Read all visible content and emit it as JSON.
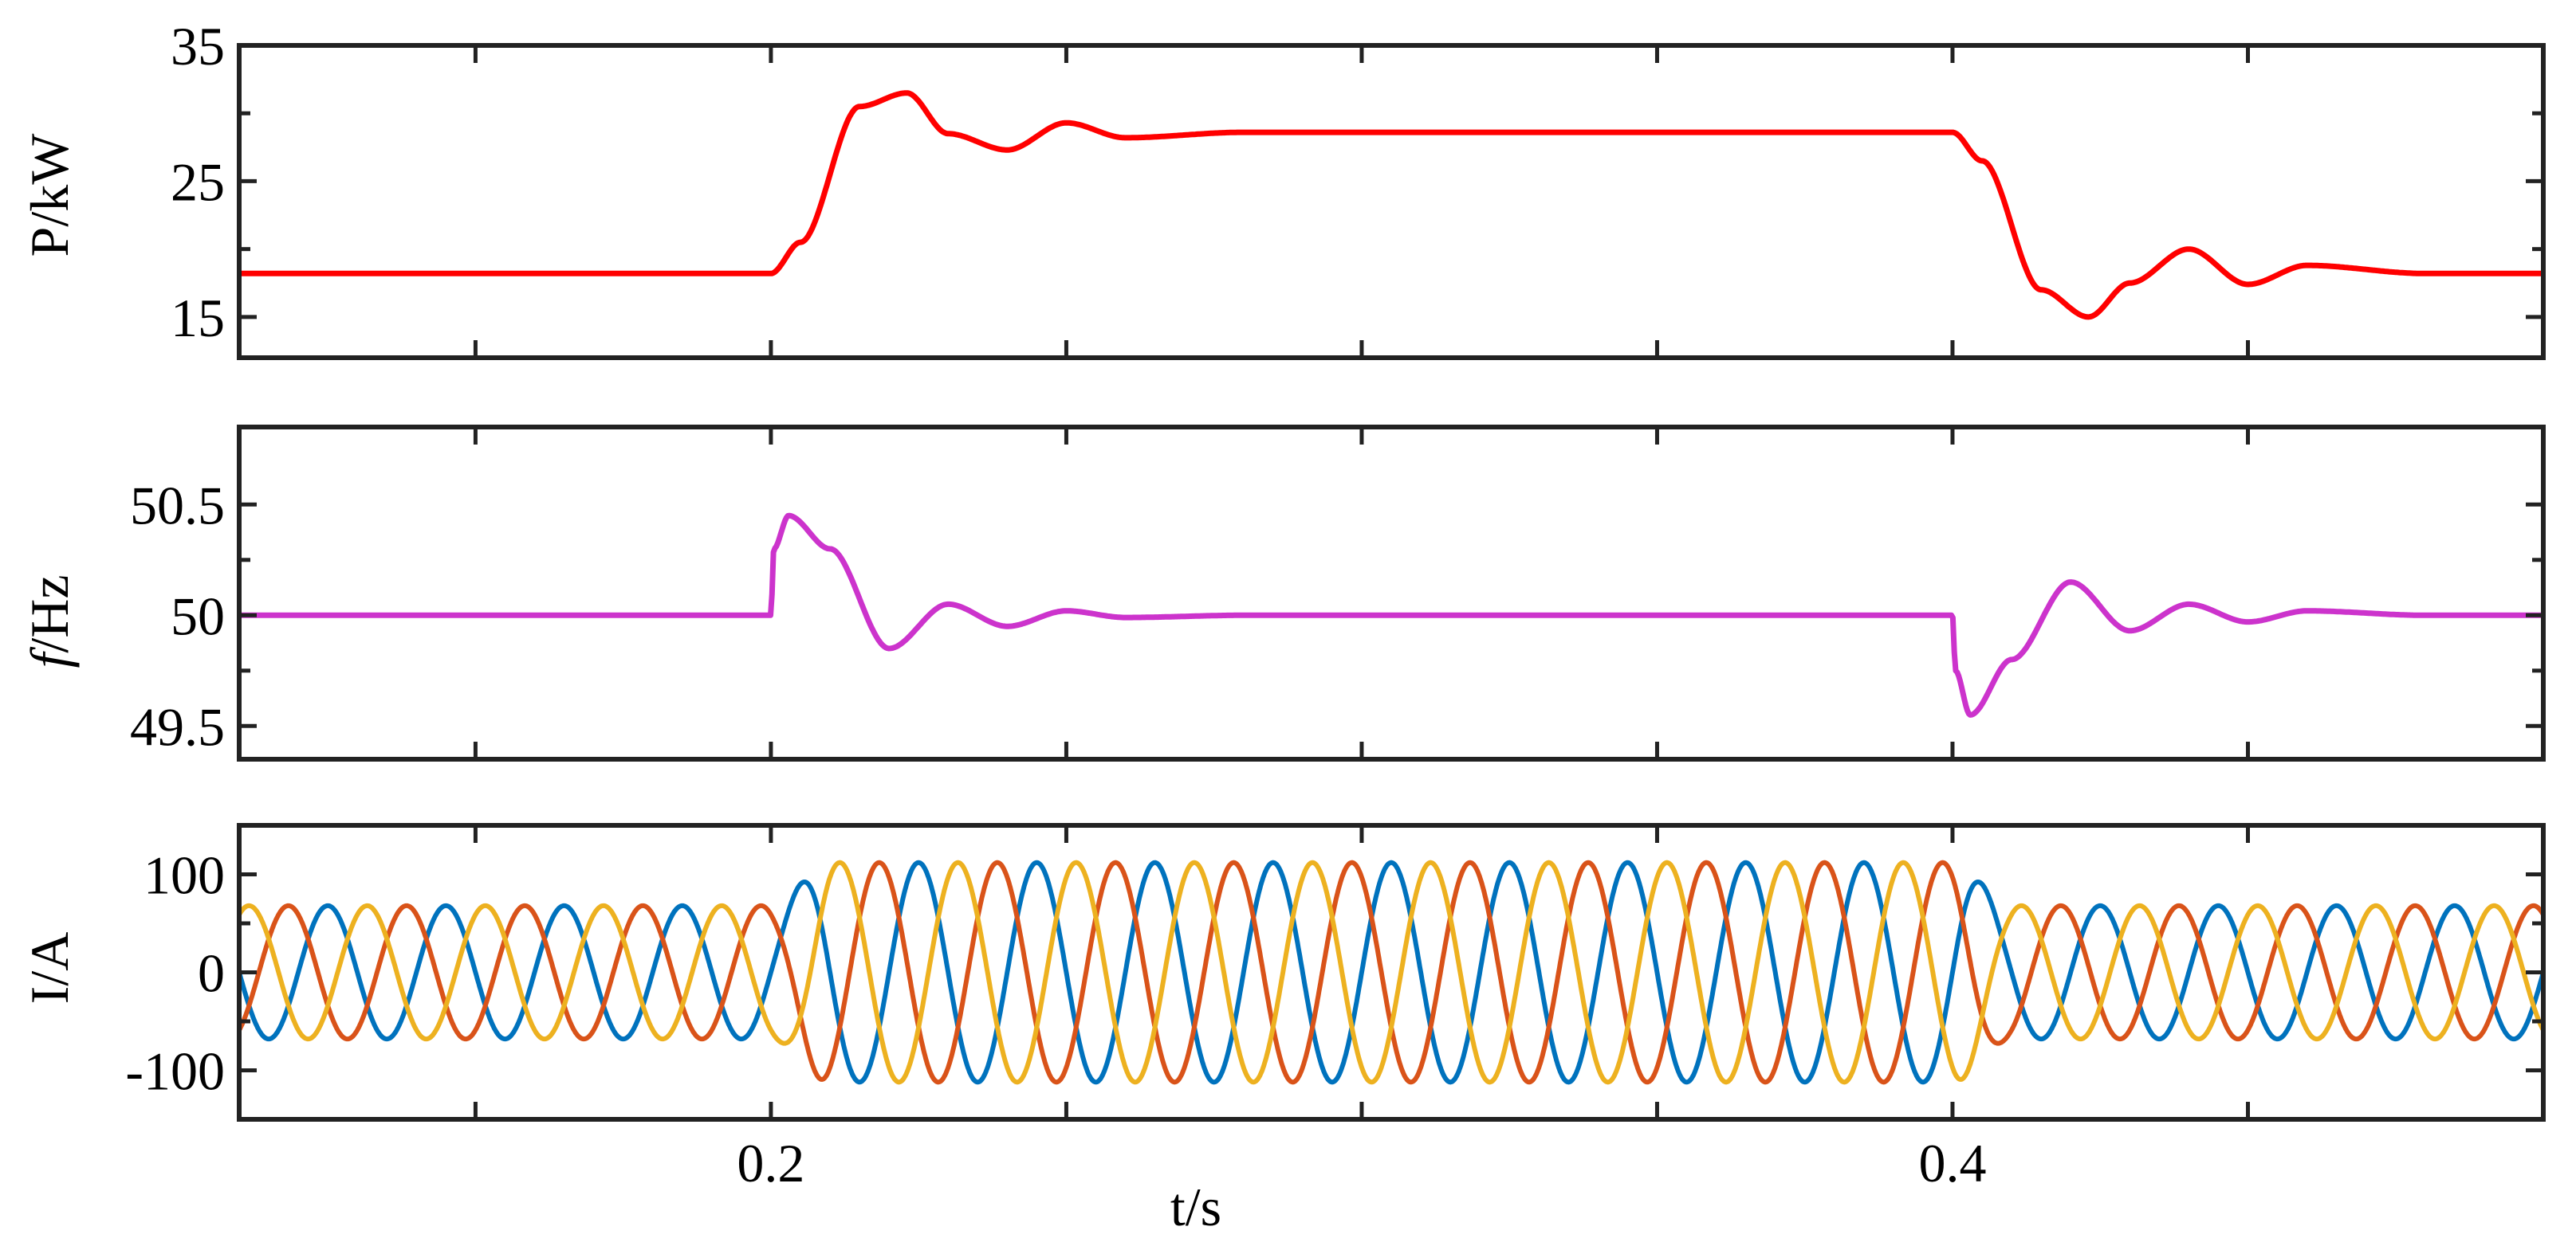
{
  "chart_data": [
    {
      "type": "line",
      "ylabel": "P/kW",
      "xlim": [
        0.11,
        0.5
      ],
      "ylim": [
        12,
        35
      ],
      "yticks": [
        15,
        25,
        35
      ],
      "ytick_labels": [
        "15",
        "25",
        "35"
      ],
      "xticks": [
        0.15,
        0.2,
        0.25,
        0.3,
        0.35,
        0.4,
        0.45
      ],
      "series": [
        {
          "color": "#ff0000",
          "x": [
            0.11,
            0.2,
            0.205,
            0.215,
            0.223,
            0.23,
            0.24,
            0.25,
            0.26,
            0.28,
            0.4,
            0.405,
            0.415,
            0.423,
            0.43,
            0.44,
            0.45,
            0.46,
            0.48,
            0.5
          ],
          "y": [
            18.2,
            18.2,
            20.5,
            30.5,
            31.5,
            28.5,
            27.3,
            29.3,
            28.2,
            28.6,
            28.6,
            26.5,
            17.0,
            15.0,
            17.5,
            20.0,
            17.4,
            18.8,
            18.2,
            18.2
          ]
        }
      ],
      "grid": false
    },
    {
      "type": "line",
      "ylabel_italic": "f",
      "ylabel_rest": "/Hz",
      "xlim": [
        0.11,
        0.5
      ],
      "ylim": [
        49.35,
        50.85
      ],
      "yticks": [
        49.5,
        50,
        50.5
      ],
      "ytick_labels": [
        "49.5",
        "50",
        "50.5"
      ],
      "xticks": [
        0.15,
        0.2,
        0.25,
        0.3,
        0.35,
        0.4,
        0.45
      ],
      "series": [
        {
          "color": "#cc33cc",
          "x": [
            0.11,
            0.2,
            0.2005,
            0.203,
            0.21,
            0.22,
            0.23,
            0.24,
            0.25,
            0.26,
            0.28,
            0.4,
            0.4005,
            0.403,
            0.41,
            0.42,
            0.43,
            0.44,
            0.45,
            0.46,
            0.48,
            0.5
          ],
          "y": [
            50.0,
            50.0,
            50.3,
            50.45,
            50.3,
            49.85,
            50.05,
            49.95,
            50.02,
            49.99,
            50.0,
            50.0,
            49.75,
            49.55,
            49.8,
            50.15,
            49.93,
            50.05,
            49.97,
            50.02,
            50.0,
            50.0
          ]
        }
      ],
      "grid": false
    },
    {
      "type": "line",
      "ylabel": "I/A",
      "xlim": [
        0.11,
        0.5
      ],
      "ylim": [
        -150,
        150
      ],
      "yticks": [
        -100,
        0,
        100
      ],
      "ytick_labels": [
        "-100",
        "0",
        "100"
      ],
      "xticks": [
        0.15,
        0.2,
        0.25,
        0.3,
        0.35,
        0.4,
        0.45
      ],
      "xtick_labels": [
        "",
        "0.2",
        "",
        "",
        "",
        "0.4",
        ""
      ],
      "xlabel": "t/s",
      "frequency_hz": 50,
      "amplitude_steps": {
        "t": [
          0.11,
          0.2,
          0.21,
          0.4,
          0.41,
          0.5
        ],
        "amplitude": [
          68,
          68,
          112,
          112,
          68,
          68
        ]
      },
      "series": [
        {
          "color": "#0072bd",
          "phase_deg": 0
        },
        {
          "color": "#d95319",
          "phase_deg": 120
        },
        {
          "color": "#edb120",
          "phase_deg": -120
        }
      ],
      "grid": false
    }
  ]
}
